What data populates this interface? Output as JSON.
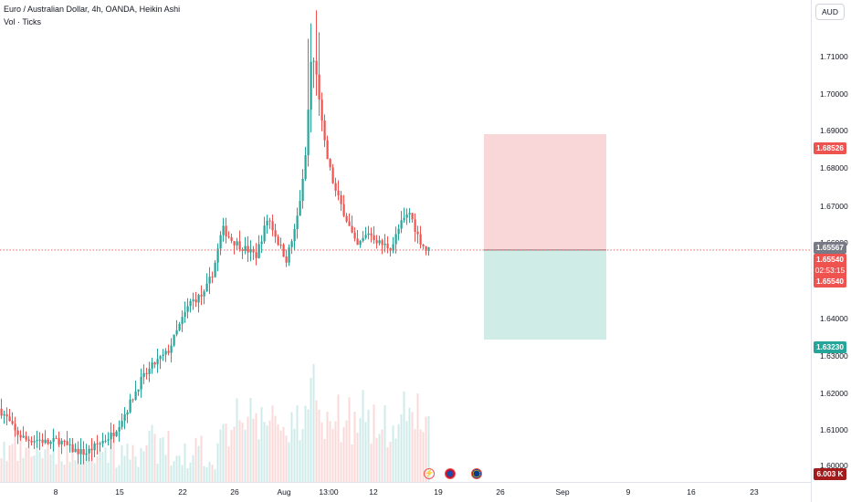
{
  "header": {
    "title": "Euro / Australian Dollar, 4h, OANDA, Heikin Ashi",
    "volume_label": "Vol · Ticks",
    "currency_button": "AUD"
  },
  "colors": {
    "up": "#26a69a",
    "down": "#ef5350",
    "stop_zone": "#f7c5c8",
    "target_zone": "#bfe6df",
    "last_price": "#ef5350",
    "label_bg_grey": "#787b86",
    "label_bg_dark": "#a31b1b"
  },
  "price_scale": {
    "ticks": [
      "1.71000",
      "1.70000",
      "1.69000",
      "1.68000",
      "1.67000",
      "1.66000",
      "1.64000",
      "1.63000",
      "1.62000",
      "1.61000",
      "1.60000"
    ],
    "labels": {
      "stop": "1.68526",
      "prev_close": "1.65567",
      "last_price": "1.65540",
      "countdown": "02:53:15",
      "entry": "1.65540",
      "target": "1.63230",
      "volume": "6.003 K"
    }
  },
  "time_axis": {
    "ticks": [
      "8",
      "15",
      "22",
      "26",
      "Aug",
      "13:00",
      "12",
      "19",
      "26",
      "Sep",
      "9",
      "16",
      "23"
    ]
  },
  "events": [
    {
      "icon": "lightning-icon",
      "symbol": "⚡"
    },
    {
      "icon": "flag-au-icon",
      "symbol": ""
    },
    {
      "icon": "flag-eu-icon",
      "symbol": ""
    }
  ],
  "chart_data": {
    "type": "candlestick",
    "style": "Heikin Ashi",
    "instrument": "Euro / Australian Dollar",
    "timeframe": "4h",
    "y_range": [
      1.5975,
      1.7175
    ],
    "trend_path": [
      {
        "t": 0,
        "p": 1.6145
      },
      {
        "t": 8,
        "p": 1.6125
      },
      {
        "t": 18,
        "p": 1.6085
      },
      {
        "t": 30,
        "p": 1.6065
      },
      {
        "t": 45,
        "p": 1.6065
      },
      {
        "t": 55,
        "p": 1.6055
      },
      {
        "t": 65,
        "p": 1.6065
      },
      {
        "t": 80,
        "p": 1.604
      },
      {
        "t": 95,
        "p": 1.603
      },
      {
        "t": 110,
        "p": 1.6055
      },
      {
        "t": 125,
        "p": 1.608
      },
      {
        "t": 140,
        "p": 1.614
      },
      {
        "t": 155,
        "p": 1.6215
      },
      {
        "t": 170,
        "p": 1.626
      },
      {
        "t": 185,
        "p": 1.629
      },
      {
        "t": 200,
        "p": 1.637
      },
      {
        "t": 210,
        "p": 1.642
      },
      {
        "t": 225,
        "p": 1.644
      },
      {
        "t": 235,
        "p": 1.65
      },
      {
        "t": 245,
        "p": 1.661
      },
      {
        "t": 255,
        "p": 1.658
      },
      {
        "t": 268,
        "p": 1.656
      },
      {
        "t": 282,
        "p": 1.654
      },
      {
        "t": 295,
        "p": 1.664
      },
      {
        "t": 305,
        "p": 1.658
      },
      {
        "t": 315,
        "p": 1.653
      },
      {
        "t": 325,
        "p": 1.661
      },
      {
        "t": 335,
        "p": 1.676
      },
      {
        "t": 343,
        "p": 1.706
      },
      {
        "t": 350,
        "p": 1.695
      },
      {
        "t": 358,
        "p": 1.681
      },
      {
        "t": 368,
        "p": 1.671
      },
      {
        "t": 380,
        "p": 1.664
      },
      {
        "t": 392,
        "p": 1.656
      },
      {
        "t": 405,
        "p": 1.66
      },
      {
        "t": 418,
        "p": 1.657
      },
      {
        "t": 430,
        "p": 1.656
      },
      {
        "t": 440,
        "p": 1.662
      },
      {
        "t": 450,
        "p": 1.665
      },
      {
        "t": 460,
        "p": 1.6585
      },
      {
        "t": 468,
        "p": 1.6554
      }
    ],
    "volume_max_ticks": 6003,
    "position_tool": {
      "type": "short",
      "entry": 1.6554,
      "stop_loss": 1.68526,
      "take_profit": 1.6323
    },
    "last_price": 1.6554,
    "previous_close": 1.65567
  }
}
